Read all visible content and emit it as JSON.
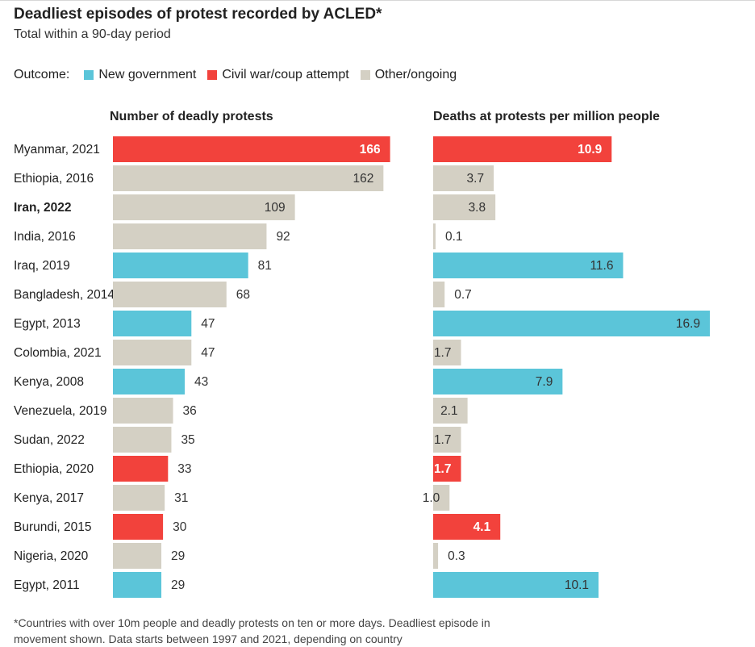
{
  "title": "Deadliest episodes of protest recorded by ACLED*",
  "subtitle": "Total within a 90-day period",
  "legend": {
    "label": "Outcome:",
    "items": [
      {
        "name": "New government",
        "color": "#5bc5d9"
      },
      {
        "name": "Civil war/coup attempt",
        "color": "#f2423c"
      },
      {
        "name": "Other/ongoing",
        "color": "#d4d0c4"
      }
    ]
  },
  "panels": {
    "left_title": "Number of deadly protests",
    "right_title": "Deaths at protests per million people"
  },
  "chart_data": {
    "type": "bar",
    "categories": [
      "Myanmar, 2021",
      "Ethiopia, 2016",
      "Iran, 2022",
      "India, 2016",
      "Iraq, 2019",
      "Bangladesh, 2014",
      "Egypt, 2013",
      "Colombia, 2021",
      "Kenya, 2008",
      "Venezuela, 2019",
      "Sudan, 2022",
      "Ethiopia, 2020",
      "Kenya, 2017",
      "Burundi, 2015",
      "Nigeria, 2020",
      "Egypt, 2011"
    ],
    "highlight": "Iran, 2022",
    "outcome": [
      "Civil war/coup attempt",
      "Other/ongoing",
      "Other/ongoing",
      "Other/ongoing",
      "New government",
      "Other/ongoing",
      "New government",
      "Other/ongoing",
      "New government",
      "Other/ongoing",
      "Other/ongoing",
      "Civil war/coup attempt",
      "Other/ongoing",
      "Civil war/coup attempt",
      "Other/ongoing",
      "New government"
    ],
    "series": [
      {
        "name": "Number of deadly protests",
        "values": [
          166,
          162,
          109,
          92,
          81,
          68,
          47,
          47,
          43,
          36,
          35,
          33,
          31,
          30,
          29,
          29
        ],
        "labels": [
          "166",
          "162",
          "109",
          "92",
          "81",
          "68",
          "47",
          "47",
          "43",
          "36",
          "35",
          "33",
          "31",
          "30",
          "29",
          "29"
        ]
      },
      {
        "name": "Deaths at protests per million people",
        "values": [
          10.9,
          3.7,
          3.8,
          0.1,
          11.6,
          0.7,
          16.9,
          1.7,
          7.9,
          2.1,
          1.7,
          1.7,
          1.0,
          4.1,
          0.3,
          10.1
        ],
        "labels": [
          "10.9",
          "3.7",
          "3.8",
          "0.1",
          "11.6",
          "0.7",
          "16.9",
          "1.7",
          "7.9",
          "2.1",
          "1.7",
          "1.7",
          "1.0",
          "4.1",
          "0.3",
          "10.1"
        ]
      }
    ]
  },
  "footnote": "*Countries with over 10m people and deadly protests on ten or more days. Deadliest episode in movement shown. Data starts between 1997 and 2021, depending on country"
}
